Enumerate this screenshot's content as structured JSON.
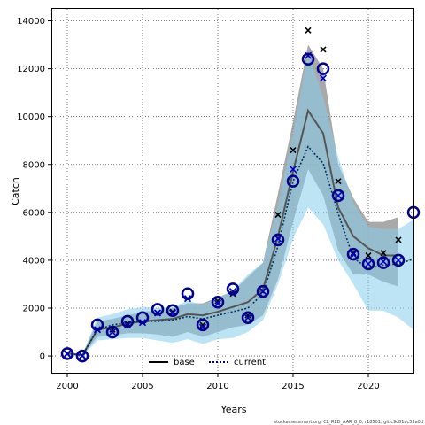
{
  "chart_data": {
    "type": "line",
    "xlabel": "Years",
    "ylabel": "Catch",
    "xlim": [
      1999,
      2023
    ],
    "ylim": [
      -700,
      14500
    ],
    "x_ticks": [
      2000,
      2005,
      2010,
      2015,
      2020
    ],
    "y_ticks": [
      0,
      2000,
      4000,
      6000,
      8000,
      10000,
      12000,
      14000
    ],
    "grid": true,
    "legend_position": "bottom",
    "x": [
      2000,
      2001,
      2002,
      2003,
      2004,
      2005,
      2006,
      2007,
      2008,
      2009,
      2010,
      2011,
      2012,
      2013,
      2014,
      2015,
      2016,
      2017,
      2018,
      2019,
      2020,
      2021,
      2022,
      2023
    ],
    "series": [
      {
        "name": "base",
        "color": "#000000",
        "line_style": "solid",
        "band_color": "#8c8c8c",
        "median": [
          120,
          30,
          1100,
          1200,
          1350,
          1450,
          1500,
          1550,
          1750,
          1700,
          1850,
          2050,
          2250,
          2800,
          5000,
          7700,
          10250,
          9300,
          6200,
          5000,
          4500,
          4200,
          4200,
          null
        ],
        "lower": [
          60,
          0,
          800,
          850,
          950,
          950,
          900,
          800,
          1000,
          800,
          1000,
          1200,
          1300,
          1700,
          3200,
          5600,
          7800,
          6700,
          4400,
          3400,
          3400,
          3100,
          2900,
          null
        ],
        "upper": [
          180,
          60,
          1450,
          1550,
          1700,
          1850,
          1900,
          2000,
          2200,
          2200,
          2450,
          2700,
          3300,
          3900,
          6800,
          9800,
          13000,
          12000,
          8000,
          6600,
          5600,
          5600,
          5800,
          null
        ],
        "observed": [
          100,
          0,
          1100,
          1100,
          1350,
          1400,
          1800,
          1850,
          2400,
          1300,
          2300,
          2600,
          1700,
          2700,
          5900,
          8600,
          13600,
          12800,
          7300,
          4300,
          4200,
          4300,
          4850,
          null
        ]
      },
      {
        "name": "current",
        "color": "#00008b",
        "line_style": "dashed",
        "band_color": "#87ceeb",
        "median": [
          100,
          30,
          1100,
          1300,
          1400,
          1450,
          1450,
          1500,
          1650,
          1550,
          1700,
          1850,
          2000,
          2600,
          4600,
          7300,
          8750,
          8050,
          5950,
          4100,
          3650,
          3800,
          3850,
          4050
        ],
        "lower": [
          40,
          0,
          650,
          700,
          750,
          750,
          650,
          550,
          700,
          500,
          700,
          750,
          1000,
          1500,
          3000,
          4900,
          6200,
          5500,
          4000,
          3000,
          1900,
          1900,
          1600,
          1100
        ],
        "upper": [
          160,
          60,
          1600,
          1750,
          1950,
          2050,
          2000,
          2050,
          2300,
          2150,
          2400,
          2750,
          3400,
          3900,
          6300,
          9300,
          12700,
          10800,
          8300,
          6400,
          5400,
          5300,
          5300,
          5700
        ],
        "observed_x_marks": [
          80,
          20,
          1100,
          1000,
          1300,
          1400,
          1800,
          1800,
          2400,
          1200,
          2200,
          2700,
          1600,
          2700,
          4900,
          7800,
          12550,
          11600,
          6700,
          4250,
          3850,
          3950,
          4000,
          null
        ],
        "observed_circles": [
          100,
          0,
          1300,
          1000,
          1450,
          1600,
          1950,
          1900,
          2600,
          1300,
          2250,
          2800,
          1600,
          2700,
          4850,
          7300,
          12400,
          12000,
          6700,
          4250,
          3850,
          3900,
          4000,
          6000
        ]
      }
    ]
  },
  "footer_text": "stockassessment.org, CL_RED_AAR_8_0, r18501, git:c9c81ac53a0d"
}
